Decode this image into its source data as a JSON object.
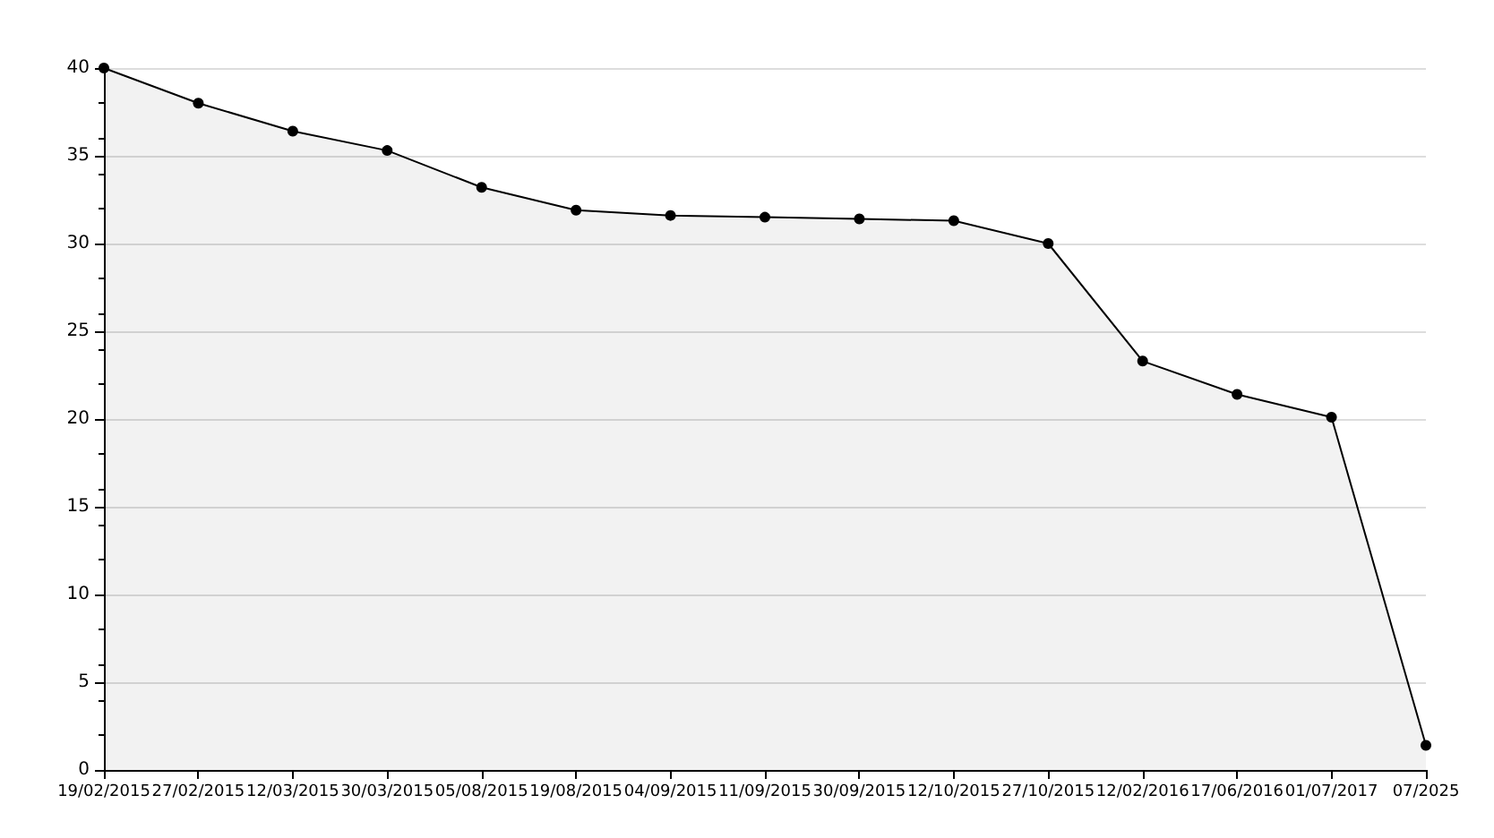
{
  "chart_data": {
    "type": "area",
    "categories": [
      "19/02/2015",
      "27/02/2015",
      "12/03/2015",
      "30/03/2015",
      "05/08/2015",
      "19/08/2015",
      "04/09/2015",
      "11/09/2015",
      "30/09/2015",
      "12/10/2015",
      "27/10/2015",
      "12/02/2016",
      "17/06/2016",
      "01/07/2017",
      "07/2025"
    ],
    "series": [
      {
        "color": "#000000",
        "values": [
          40,
          38,
          36.4,
          35.3,
          33.2,
          31.9,
          31.6,
          31.5,
          31.4,
          31.3,
          30,
          23.3,
          21.4,
          20.1,
          1.4
        ]
      }
    ],
    "ylim": [
      0,
      40
    ],
    "yticks": [
      0,
      5,
      10,
      15,
      20,
      25,
      30,
      35,
      40
    ],
    "grid": "y",
    "marker": "circle",
    "line_style": "solid"
  }
}
